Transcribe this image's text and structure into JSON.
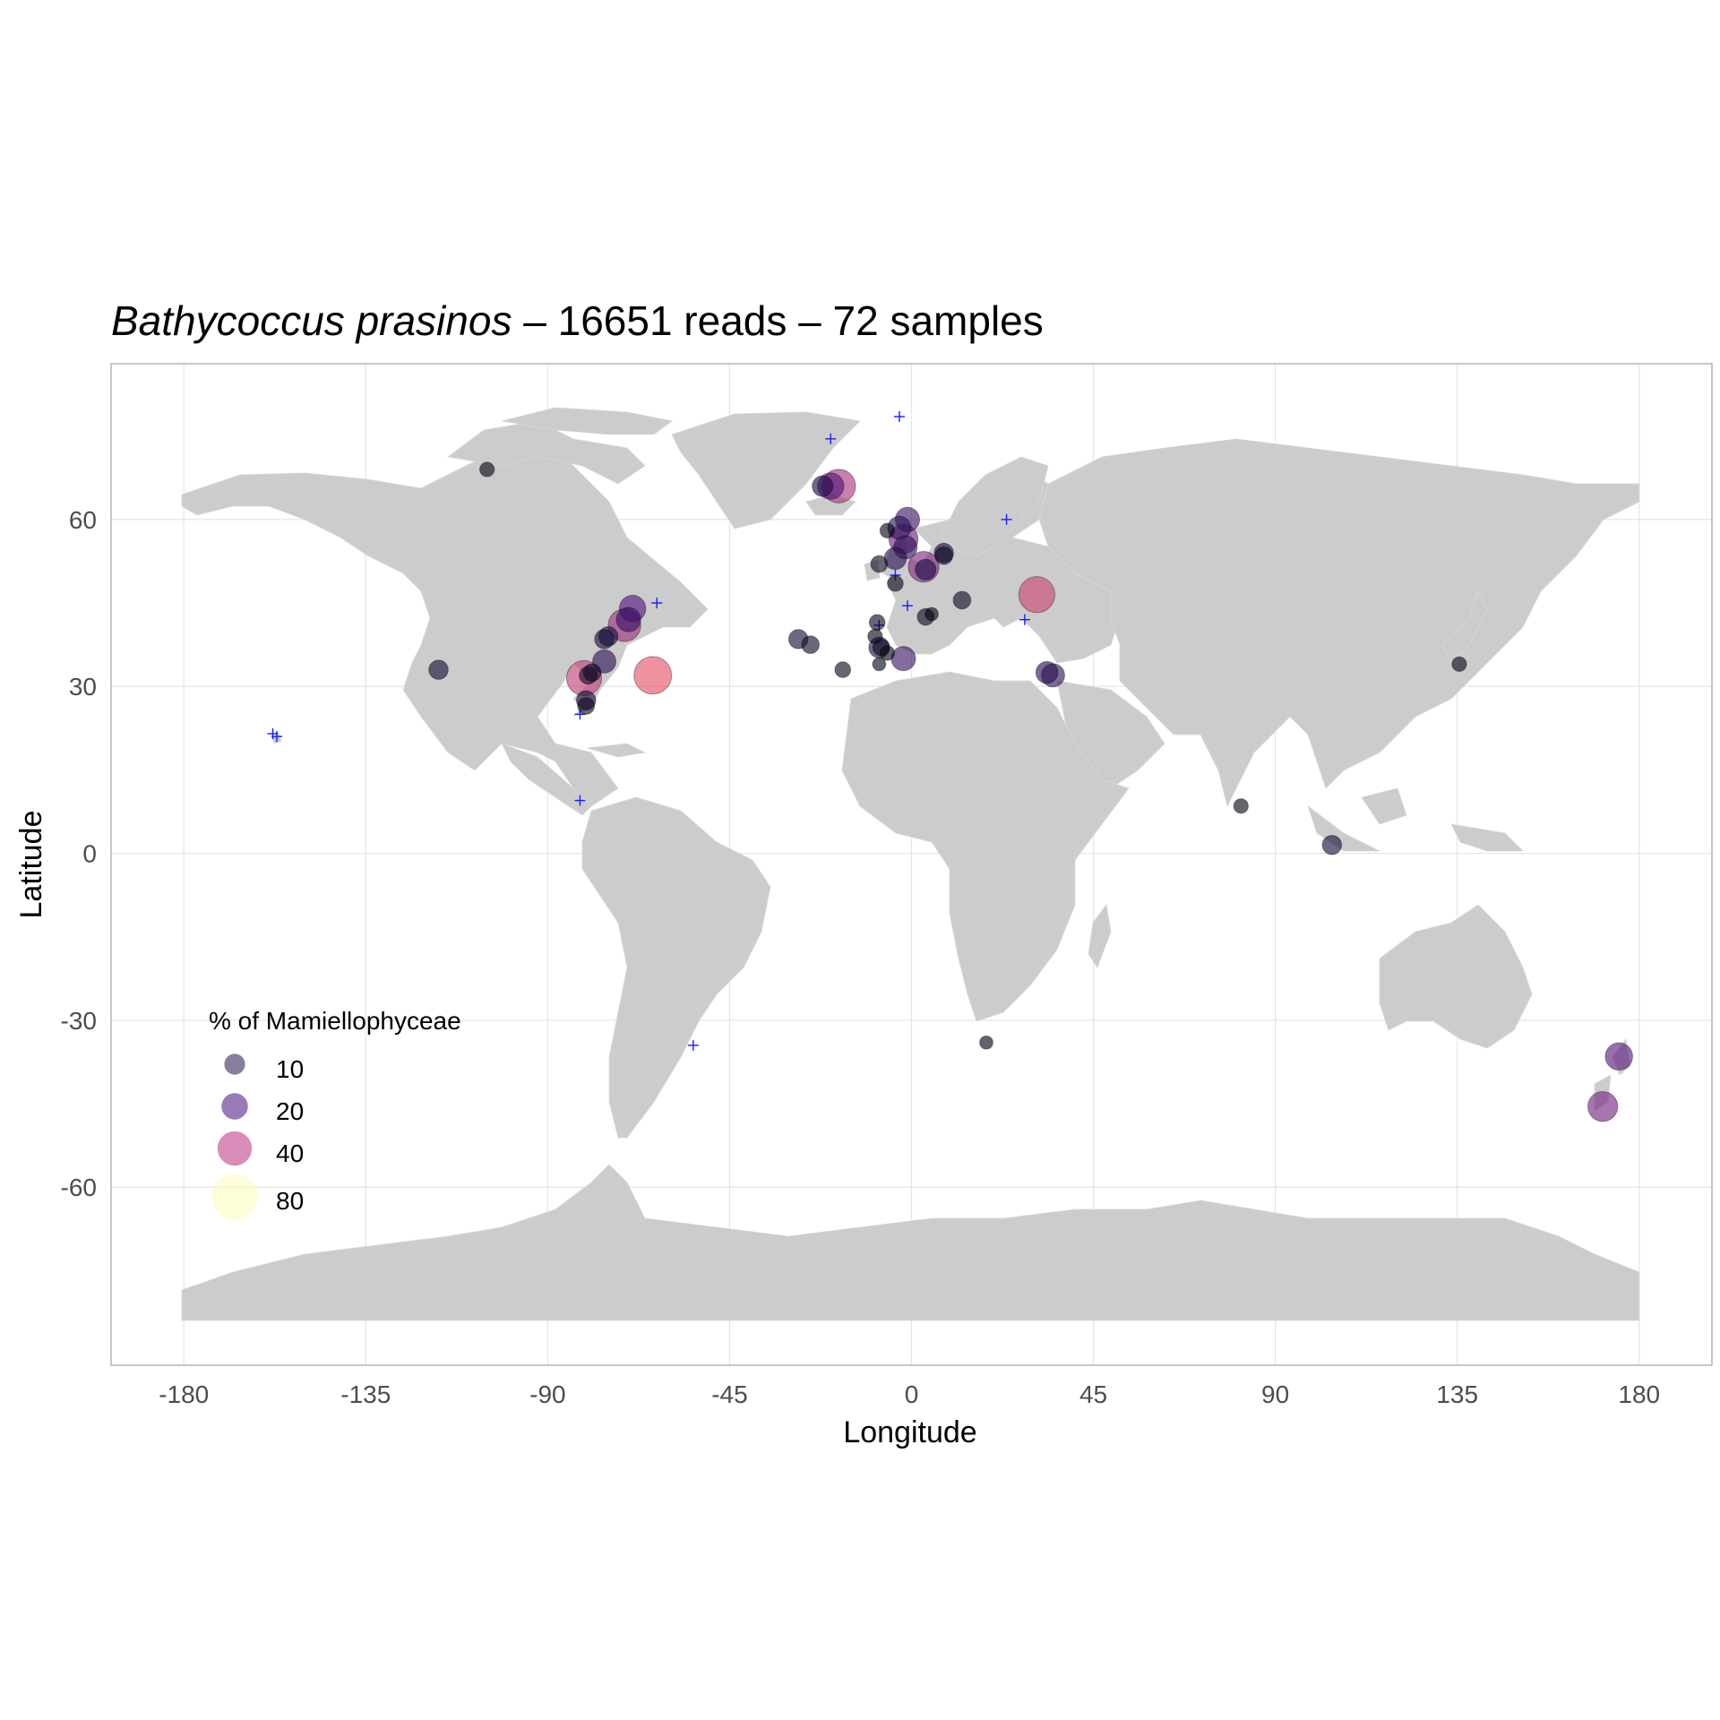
{
  "title": {
    "species": "Bathycoccus prasinos",
    "separator": " – ",
    "reads": "16651 reads",
    "samples": "72 samples"
  },
  "axes": {
    "xlabel": "Longitude",
    "ylabel": "Latitude",
    "xlim": [
      -198,
      198
    ],
    "ylim": [
      -92,
      88
    ],
    "xticks": [
      -180,
      -135,
      -90,
      -45,
      0,
      45,
      90,
      135,
      180
    ],
    "yticks": [
      -60,
      -30,
      0,
      30,
      60
    ]
  },
  "colors": {
    "land": "#cccccc",
    "zero_marker": "#1a1aff",
    "panel_border": "#b3b3b3",
    "gridline": "#e5e5e5"
  },
  "legend": {
    "title": "% of Mamiellophyceae",
    "placement": "bottom-left",
    "items": [
      {
        "label": "10",
        "value": 10,
        "color": "#3b2f5c"
      },
      {
        "label": "20",
        "value": 20,
        "color": "#5b2a8c"
      },
      {
        "label": "40",
        "value": 40,
        "color": "#c0468a"
      },
      {
        "label": "80",
        "value": 80,
        "color": "#fcfdbf"
      }
    ]
  },
  "chart_data": {
    "type": "scatter",
    "title": "Bathycoccus prasinos – 16651 reads – 72 samples",
    "xlabel": "Longitude",
    "ylabel": "Latitude",
    "size_legend": "% of Mamiellophyceae",
    "points": [
      {
        "lon": -105,
        "lat": 69,
        "pct": 3
      },
      {
        "lon": -117,
        "lat": 33,
        "pct": 8
      },
      {
        "lon": -69,
        "lat": 44,
        "pct": 20
      },
      {
        "lon": -70,
        "lat": 42,
        "pct": 16
      },
      {
        "lon": -71,
        "lat": 41,
        "pct": 35
      },
      {
        "lon": -75,
        "lat": 39,
        "pct": 8
      },
      {
        "lon": -76,
        "lat": 38.5,
        "pct": 8
      },
      {
        "lon": -76,
        "lat": 34.5,
        "pct": 14
      },
      {
        "lon": -79,
        "lat": 32.5,
        "pct": 6
      },
      {
        "lon": -80,
        "lat": 32,
        "pct": 6
      },
      {
        "lon": -81,
        "lat": 31.5,
        "pct": 42
      },
      {
        "lon": -64,
        "lat": 32,
        "pct": 50
      },
      {
        "lon": -80.5,
        "lat": 27.5,
        "pct": 8
      },
      {
        "lon": -80.5,
        "lat": 26.5,
        "pct": 5
      },
      {
        "lon": -28,
        "lat": 38.5,
        "pct": 8
      },
      {
        "lon": -25,
        "lat": 37.5,
        "pct": 6
      },
      {
        "lon": -17,
        "lat": 33,
        "pct": 4
      },
      {
        "lon": -22,
        "lat": 66,
        "pct": 10
      },
      {
        "lon": -20,
        "lat": 66,
        "pct": 20
      },
      {
        "lon": -18,
        "lat": 66,
        "pct": 38
      },
      {
        "lon": -6,
        "lat": 58,
        "pct": 3
      },
      {
        "lon": -3,
        "lat": 58.5,
        "pct": 14
      },
      {
        "lon": -1,
        "lat": 60,
        "pct": 16
      },
      {
        "lon": -2,
        "lat": 56.5,
        "pct": 26
      },
      {
        "lon": -1.5,
        "lat": 55,
        "pct": 14
      },
      {
        "lon": -4,
        "lat": 53,
        "pct": 12
      },
      {
        "lon": -8,
        "lat": 52,
        "pct": 5
      },
      {
        "lon": -4,
        "lat": 48.5,
        "pct": 4
      },
      {
        "lon": 3,
        "lat": 51.5,
        "pct": 30
      },
      {
        "lon": 3.5,
        "lat": 51,
        "pct": 10
      },
      {
        "lon": 8,
        "lat": 54,
        "pct": 8
      },
      {
        "lon": 8,
        "lat": 53.5,
        "pct": 6
      },
      {
        "lon": 12.5,
        "lat": 45.5,
        "pct": 6
      },
      {
        "lon": 3.5,
        "lat": 42.5,
        "pct": 5
      },
      {
        "lon": 5,
        "lat": 43,
        "pct": 2
      },
      {
        "lon": -8.5,
        "lat": 41.5,
        "pct": 4
      },
      {
        "lon": -9,
        "lat": 39,
        "pct": 3
      },
      {
        "lon": -8,
        "lat": 37,
        "pct": 10
      },
      {
        "lon": -7.5,
        "lat": 37,
        "pct": 5
      },
      {
        "lon": -6,
        "lat": 36,
        "pct": 3
      },
      {
        "lon": -2,
        "lat": 35,
        "pct": 16
      },
      {
        "lon": -8,
        "lat": 34,
        "pct": 2
      },
      {
        "lon": 31,
        "lat": 46.5,
        "pct": 45
      },
      {
        "lon": 33.5,
        "lat": 32.5,
        "pct": 12
      },
      {
        "lon": 35,
        "lat": 32,
        "pct": 14
      },
      {
        "lon": 135.5,
        "lat": 34,
        "pct": 3
      },
      {
        "lon": 81.5,
        "lat": 8.5,
        "pct": 3
      },
      {
        "lon": 104,
        "lat": 1.5,
        "pct": 8
      },
      {
        "lon": 18.5,
        "lat": -34,
        "pct": 2
      },
      {
        "lon": 175,
        "lat": -36.5,
        "pct": 22
      },
      {
        "lon": 171,
        "lat": -45.5,
        "pct": 28
      }
    ],
    "zero_detection_sites": [
      {
        "lon": -158,
        "lat": 21.5
      },
      {
        "lon": -157,
        "lat": 21
      },
      {
        "lon": -63,
        "lat": 45
      },
      {
        "lon": -82,
        "lat": 25
      },
      {
        "lon": -82,
        "lat": 9.5
      },
      {
        "lon": -54,
        "lat": -34.5
      },
      {
        "lon": -20,
        "lat": 74.5
      },
      {
        "lon": -3,
        "lat": 78.5
      },
      {
        "lon": 23.5,
        "lat": 60
      },
      {
        "lon": 28,
        "lat": 42
      },
      {
        "lon": -4,
        "lat": 50
      },
      {
        "lon": -1,
        "lat": 44.5
      },
      {
        "lon": -8,
        "lat": 41
      }
    ]
  }
}
